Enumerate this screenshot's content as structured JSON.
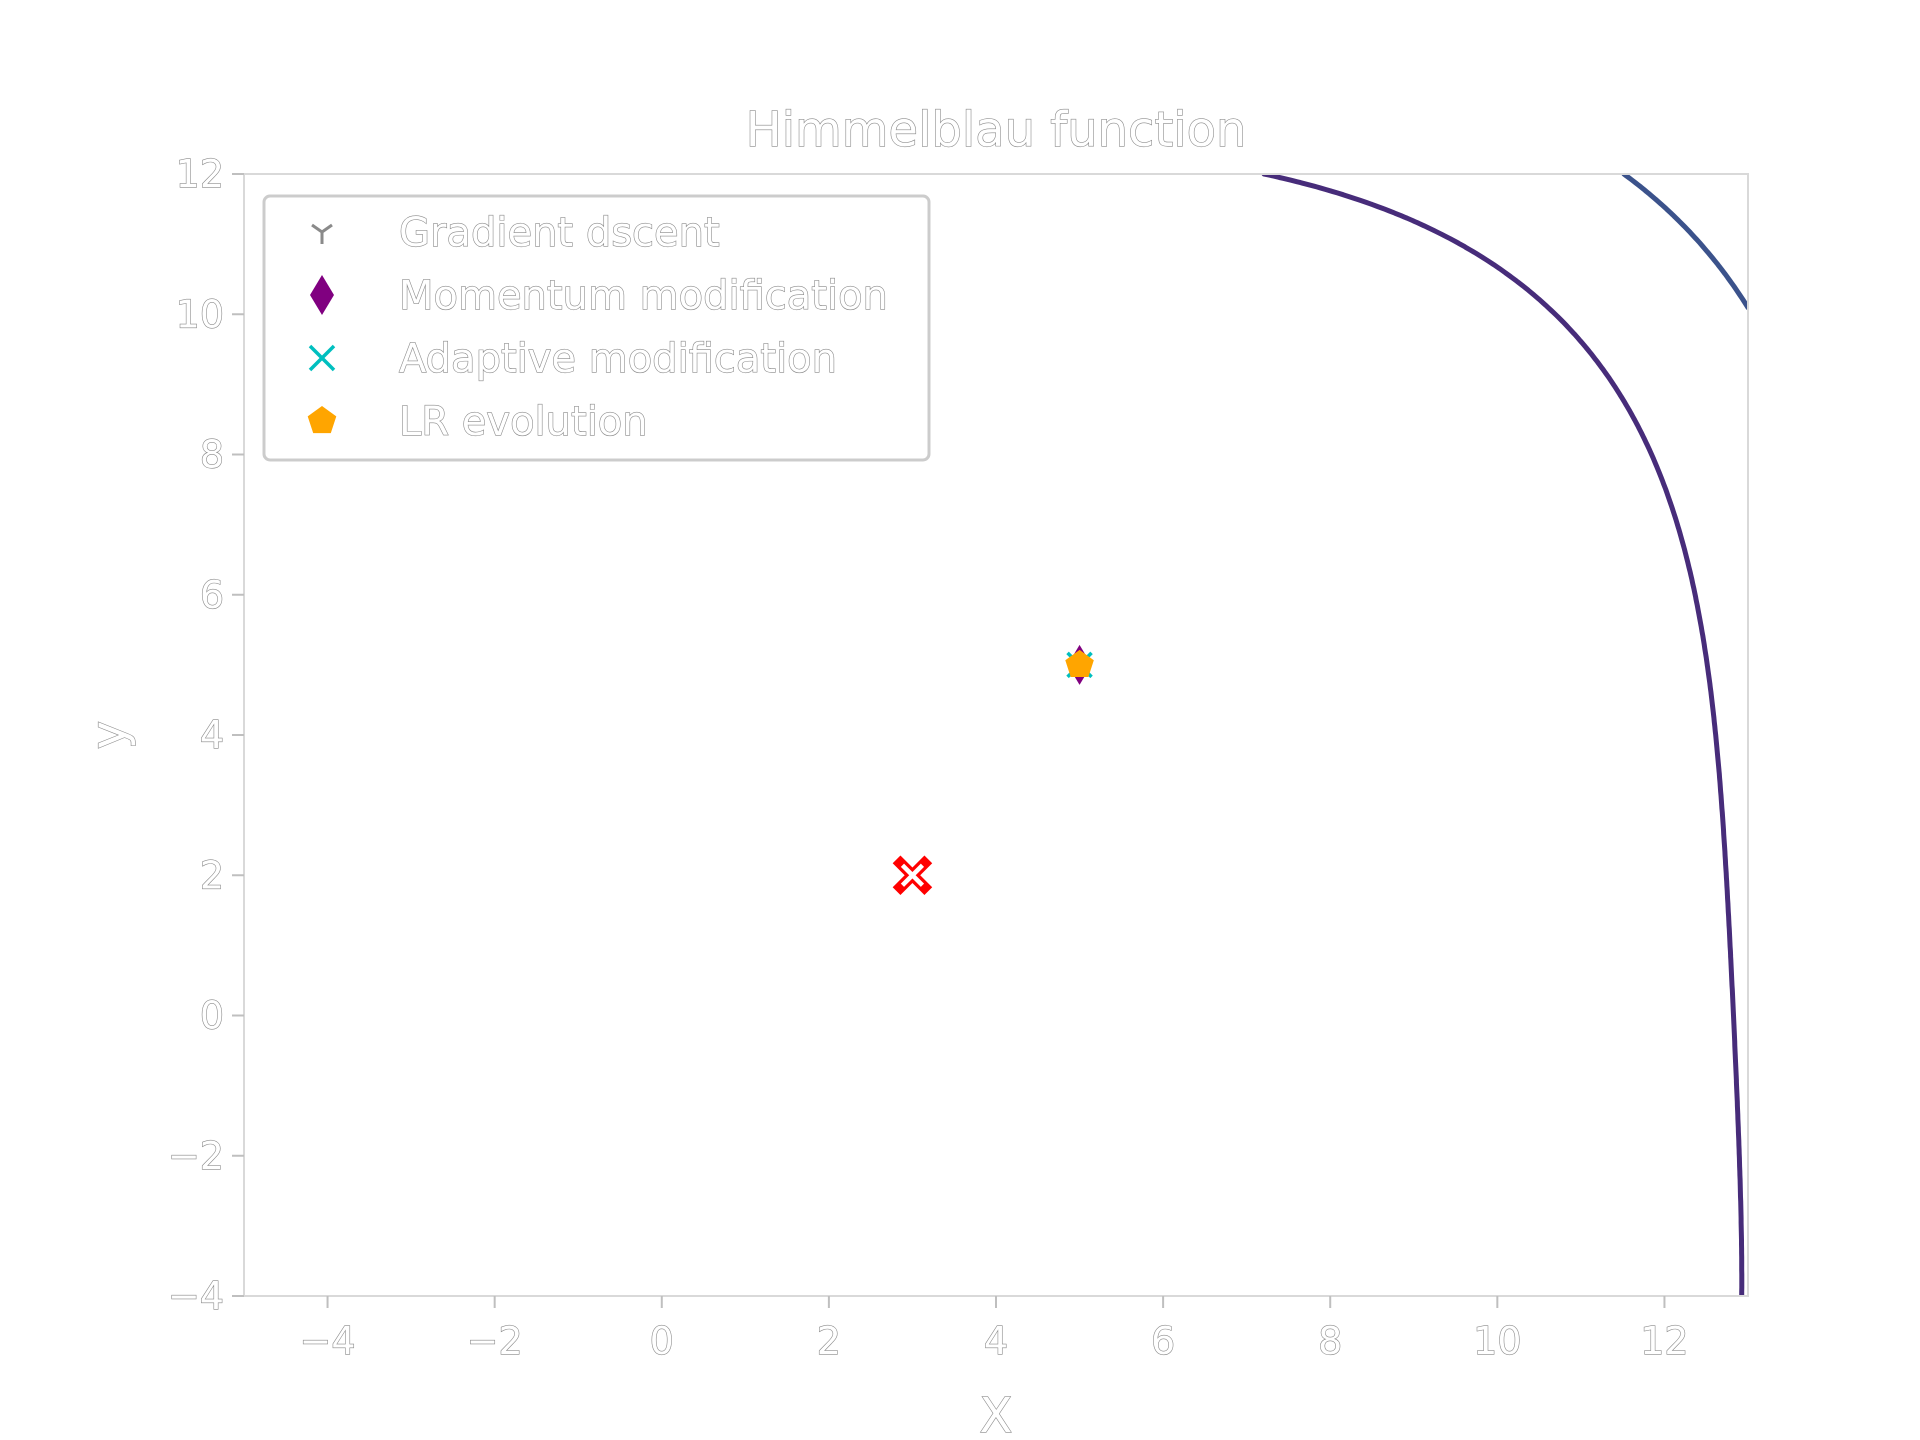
{
  "chart_data": {
    "type": "contour",
    "title": "Himmelblau function",
    "xlabel": "X",
    "ylabel": "y",
    "xlim": [
      -5,
      13
    ],
    "ylim": [
      -4,
      12
    ],
    "x_ticks": [
      "−4",
      "−2",
      "0",
      "2",
      "4",
      "6",
      "8",
      "10",
      "12"
    ],
    "x_tick_values": [
      -4,
      -2,
      0,
      2,
      4,
      6,
      8,
      10,
      12
    ],
    "y_ticks": [
      "−4",
      "−2",
      "0",
      "2",
      "4",
      "6",
      "8",
      "10",
      "12"
    ],
    "y_tick_values": [
      -4,
      -2,
      0,
      2,
      4,
      6,
      8,
      10,
      12
    ],
    "grid": false,
    "legend_position": "top-left",
    "contour_levels": [
      {
        "color": "#472c7a",
        "note": "innermost visible level"
      },
      {
        "color": "#3b528b"
      },
      {
        "color": "#2c728e"
      }
    ],
    "series": [
      {
        "name": "Gradient dscent",
        "marker": "tri_down",
        "color": "#8a8a8a",
        "points": [
          [
            5,
            5
          ]
        ]
      },
      {
        "name": "Momentum modification",
        "marker": "thin_diamond",
        "color": "#800080",
        "points": [
          [
            5,
            5
          ]
        ]
      },
      {
        "name": "Adaptive modification",
        "marker": "x",
        "color": "#00bfbf",
        "points": [
          [
            5,
            5
          ]
        ]
      },
      {
        "name": "LR evolution",
        "marker": "pentagon",
        "color": "#ffa500",
        "points": [
          [
            5,
            5
          ]
        ]
      }
    ],
    "target_point": {
      "x": 3,
      "y": 2,
      "marker": "X",
      "color": "#ff0000"
    }
  }
}
